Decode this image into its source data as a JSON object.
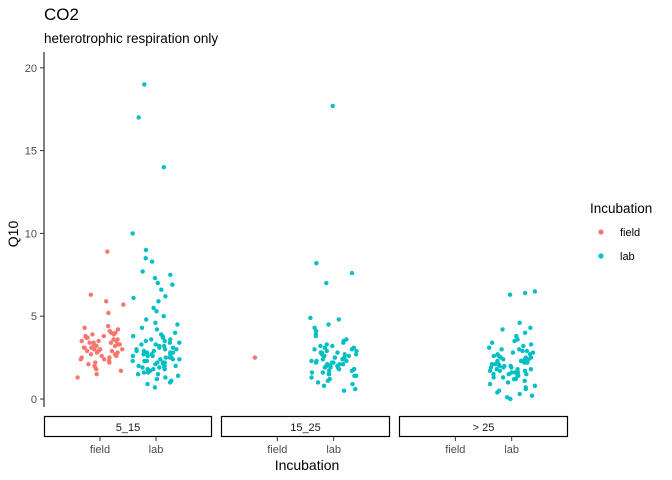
{
  "chart_data": {
    "type": "scatter",
    "title": "CO2",
    "subtitle": "heterotrophic respiration only",
    "xlabel": "Incubation",
    "ylabel": "Q10",
    "ylim": [
      -0.5,
      21
    ],
    "yticks": [
      0,
      5,
      10,
      15,
      20
    ],
    "grid": false,
    "facets": [
      "5_15",
      "15_25",
      "> 25"
    ],
    "categories": [
      "field",
      "lab"
    ],
    "legend": {
      "title": "Incubation",
      "position": "right",
      "entries": [
        {
          "name": "field",
          "color": "#F8766D"
        },
        {
          "name": "lab",
          "color": "#00BFC4"
        }
      ]
    },
    "series": [
      {
        "name": "field",
        "facet": "5_15",
        "color": "#F8766D",
        "values": [
          8.9,
          6.3,
          5.9,
          5.7,
          5.2,
          4.4,
          4.3,
          4.2,
          4.1,
          4.0,
          4.0,
          3.9,
          3.9,
          3.8,
          3.8,
          3.7,
          3.7,
          3.6,
          3.6,
          3.5,
          3.5,
          3.5,
          3.4,
          3.4,
          3.4,
          3.3,
          3.3,
          3.3,
          3.2,
          3.2,
          3.2,
          3.1,
          3.1,
          3.1,
          3.0,
          3.0,
          3.0,
          2.9,
          2.9,
          2.9,
          2.8,
          2.8,
          2.7,
          2.7,
          2.6,
          2.6,
          2.5,
          2.5,
          2.4,
          2.4,
          2.3,
          2.2,
          2.2,
          2.1,
          2.0,
          1.9,
          1.8,
          1.7,
          1.5,
          1.3
        ]
      },
      {
        "name": "lab",
        "facet": "5_15",
        "color": "#00BFC4",
        "values": [
          19.0,
          17.0,
          14.0,
          10.0,
          9.0,
          8.5,
          8.3,
          7.7,
          7.5,
          7.3,
          7.0,
          6.9,
          6.6,
          6.2,
          6.1,
          5.9,
          5.5,
          5.3,
          5.0,
          4.8,
          4.6,
          4.5,
          4.3,
          4.2,
          4.0,
          3.9,
          3.8,
          3.8,
          3.7,
          3.6,
          3.6,
          3.5,
          3.5,
          3.4,
          3.4,
          3.3,
          3.3,
          3.2,
          3.2,
          3.1,
          3.1,
          3.0,
          3.0,
          3.0,
          2.9,
          2.9,
          2.9,
          2.8,
          2.8,
          2.8,
          2.7,
          2.7,
          2.7,
          2.6,
          2.6,
          2.6,
          2.5,
          2.5,
          2.5,
          2.4,
          2.4,
          2.4,
          2.3,
          2.3,
          2.3,
          2.2,
          2.2,
          2.2,
          2.1,
          2.1,
          2.1,
          2.0,
          2.0,
          2.0,
          1.9,
          1.9,
          1.9,
          1.8,
          1.8,
          1.8,
          1.7,
          1.7,
          1.6,
          1.6,
          1.5,
          1.5,
          1.4,
          1.3,
          1.2,
          1.1,
          1.0,
          0.9,
          0.7
        ]
      },
      {
        "name": "field",
        "facet": "15_25",
        "color": "#F8766D",
        "values": [
          2.5
        ]
      },
      {
        "name": "lab",
        "facet": "15_25",
        "color": "#00BFC4",
        "values": [
          17.7,
          8.2,
          7.6,
          7.0,
          4.9,
          4.8,
          4.5,
          4.3,
          4.1,
          3.9,
          3.8,
          3.6,
          3.5,
          3.4,
          3.3,
          3.2,
          3.2,
          3.1,
          3.1,
          3.0,
          3.0,
          2.9,
          2.9,
          2.8,
          2.8,
          2.8,
          2.7,
          2.7,
          2.7,
          2.6,
          2.6,
          2.6,
          2.5,
          2.5,
          2.5,
          2.4,
          2.4,
          2.4,
          2.3,
          2.3,
          2.3,
          2.2,
          2.2,
          2.2,
          2.1,
          2.1,
          2.1,
          2.0,
          2.0,
          2.0,
          1.9,
          1.9,
          1.9,
          1.8,
          1.8,
          1.8,
          1.7,
          1.7,
          1.6,
          1.6,
          1.5,
          1.5,
          1.4,
          1.4,
          1.3,
          1.2,
          1.1,
          1.0,
          0.9,
          0.8,
          0.6,
          0.5
        ]
      },
      {
        "name": "lab",
        "facet": "> 25",
        "color": "#00BFC4",
        "values": [
          6.5,
          6.4,
          6.3,
          4.6,
          4.3,
          4.2,
          4.0,
          3.8,
          3.6,
          3.5,
          3.4,
          3.3,
          3.2,
          3.1,
          3.0,
          3.0,
          2.9,
          2.9,
          2.8,
          2.8,
          2.7,
          2.7,
          2.6,
          2.6,
          2.5,
          2.5,
          2.5,
          2.4,
          2.4,
          2.4,
          2.3,
          2.3,
          2.3,
          2.2,
          2.2,
          2.2,
          2.1,
          2.1,
          2.1,
          2.0,
          2.0,
          2.0,
          1.9,
          1.9,
          1.9,
          1.8,
          1.8,
          1.8,
          1.7,
          1.7,
          1.7,
          1.6,
          1.6,
          1.6,
          1.5,
          1.5,
          1.5,
          1.4,
          1.4,
          1.3,
          1.3,
          1.2,
          1.2,
          1.1,
          1.0,
          0.9,
          0.8,
          0.7,
          0.6,
          0.5,
          0.4,
          0.3,
          0.2,
          0.1,
          0.0
        ]
      }
    ]
  }
}
